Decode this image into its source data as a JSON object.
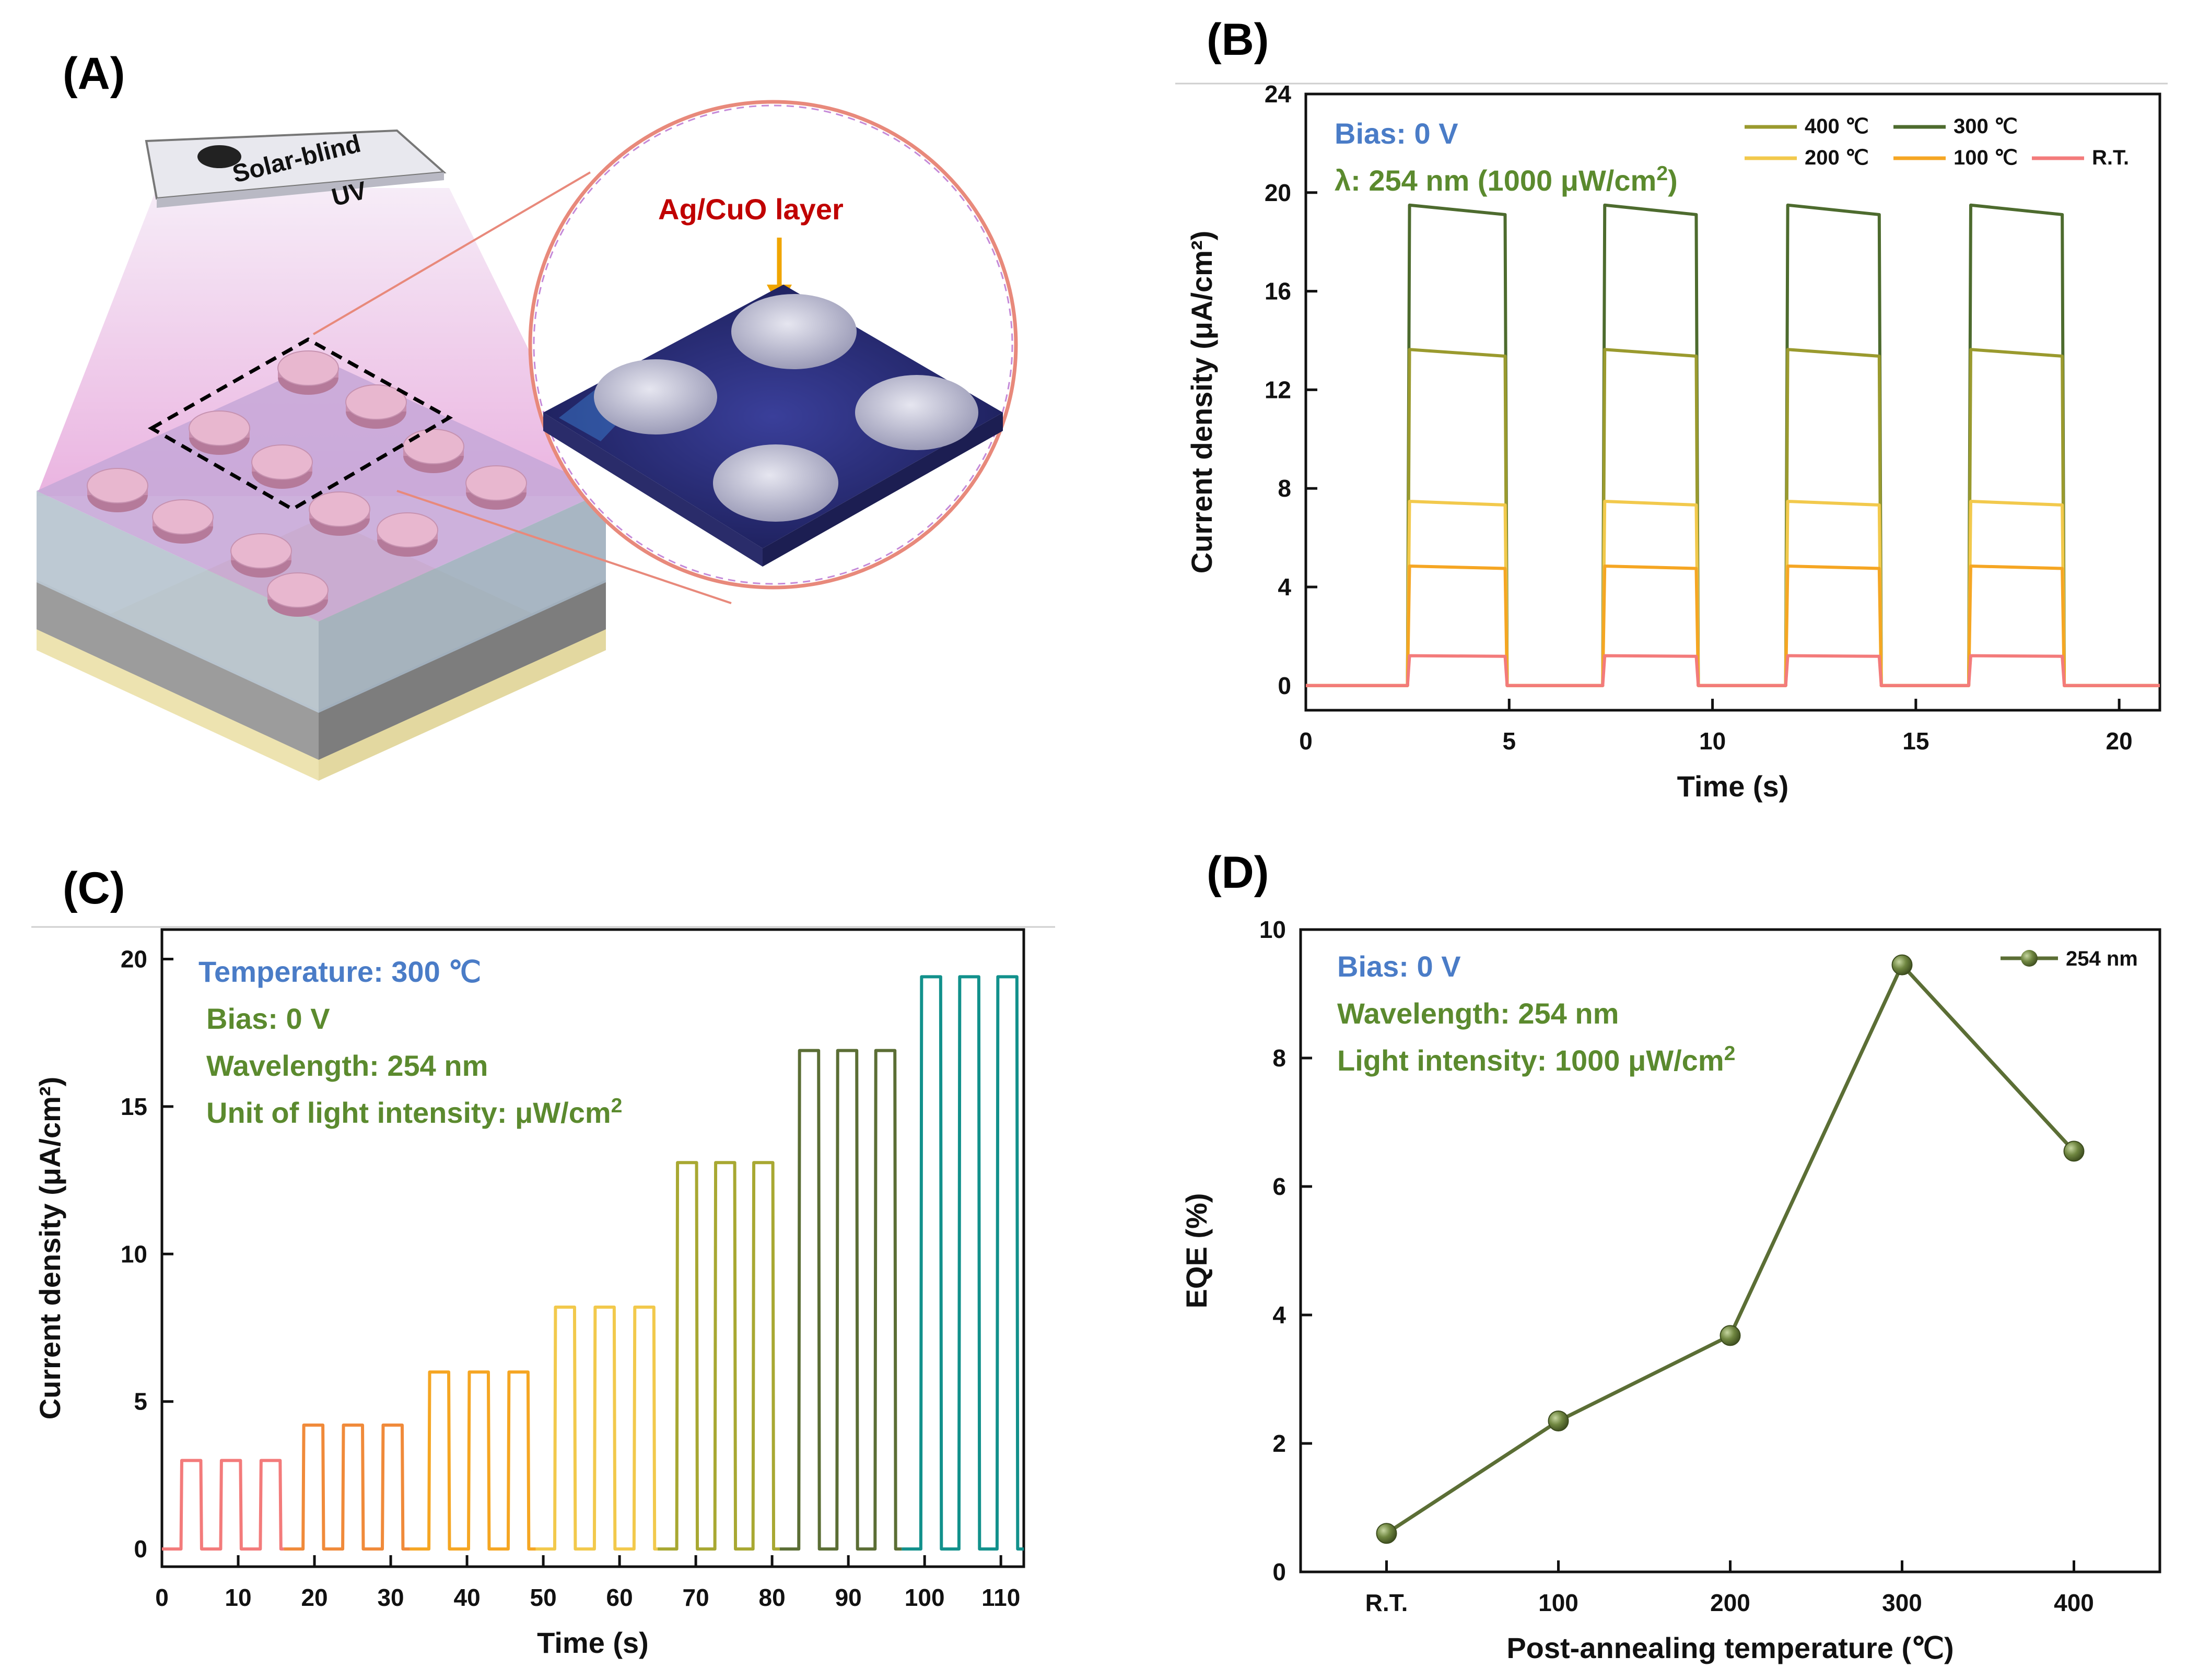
{
  "panels": {
    "a": {
      "label": "(A)",
      "lamp_text_line1": "Solar-blind",
      "lamp_text_line2": "UV",
      "inset_title": "Ag/CuO layer"
    },
    "b": {
      "label": "(B)"
    },
    "c": {
      "label": "(C)"
    },
    "d": {
      "label": "(D)"
    }
  },
  "chart_data": [
    {
      "id": "B",
      "type": "line",
      "title": "",
      "xlabel": "Time (s)",
      "ylabel": "Current density (μA/cm²)",
      "xlim": [
        0,
        21
      ],
      "ylim": [
        -1,
        24
      ],
      "xticks": [
        0,
        5,
        10,
        15,
        20
      ],
      "yticks": [
        0,
        4,
        8,
        12,
        16,
        20,
        24
      ],
      "annotations": [
        "Bias: 0 V",
        "λ: 254 nm (1000 μW/cm²)"
      ],
      "on_intervals": [
        [
          2.5,
          4.9
        ],
        [
          7.3,
          9.6
        ],
        [
          11.8,
          14.1
        ],
        [
          16.3,
          18.6
        ]
      ],
      "series": [
        {
          "name": "400 ℃",
          "color": "#9a9a2e",
          "on_value": 13.5
        },
        {
          "name": "300 ℃",
          "color": "#4d6b2e",
          "on_value": 19.3
        },
        {
          "name": "200 ℃",
          "color": "#f2c94c",
          "on_value": 7.4
        },
        {
          "name": "100 ℃",
          "color": "#f5a623",
          "on_value": 4.8
        },
        {
          "name": "R.T.",
          "color": "#f37b7b",
          "on_value": 1.2
        }
      ]
    },
    {
      "id": "C",
      "type": "line",
      "title": "",
      "xlabel": "Time (s)",
      "ylabel": "Current density (μA/cm²)",
      "xlim": [
        0,
        113
      ],
      "ylim": [
        -0.6,
        21
      ],
      "xticks": [
        0,
        10,
        20,
        30,
        40,
        50,
        60,
        70,
        80,
        90,
        100,
        110
      ],
      "yticks": [
        0,
        5,
        10,
        15,
        20
      ],
      "annotations": {
        "temperature": "Temperature: 300 ℃",
        "bias": "Bias: 0 V",
        "wavelength": "Wavelength: 254 nm",
        "unit": "Unit of light intensity: μW/cm²"
      },
      "groups": [
        {
          "color": "#f37b7b",
          "value": 3.0,
          "start": 2.5,
          "period": 5.2
        },
        {
          "color": "#f08a3a",
          "value": 4.2,
          "start": 18.5,
          "period": 5.2
        },
        {
          "color": "#f5a623",
          "value": 6.0,
          "start": 35.0,
          "period": 5.2
        },
        {
          "color": "#f2c94c",
          "value": 8.2,
          "start": 51.5,
          "period": 5.2
        },
        {
          "color": "#a8a832",
          "value": 13.1,
          "start": 67.5,
          "period": 5.0
        },
        {
          "color": "#5b6e35",
          "value": 16.9,
          "start": 83.5,
          "period": 5.0
        },
        {
          "color": "#12918c",
          "value": 19.4,
          "start": 99.5,
          "period": 5.0
        }
      ],
      "pulse_width": 2.6
    },
    {
      "id": "D",
      "type": "line",
      "title": "",
      "xlabel": "Post-annealing temperature (℃)",
      "ylabel": "EQE (%)",
      "categories": [
        "R.T.",
        "100",
        "200",
        "300",
        "400"
      ],
      "values": [
        0.6,
        2.35,
        3.68,
        9.45,
        6.55
      ],
      "ylim": [
        0,
        10
      ],
      "yticks": [
        0,
        2,
        4,
        6,
        8,
        10
      ],
      "legend": [
        "254 nm"
      ],
      "legend_position": "top-right",
      "color": "#5b6e35",
      "annotations": [
        "Bias: 0 V",
        "Wavelength: 254 nm",
        "Light intensity: 1000 μW/cm²"
      ]
    }
  ]
}
